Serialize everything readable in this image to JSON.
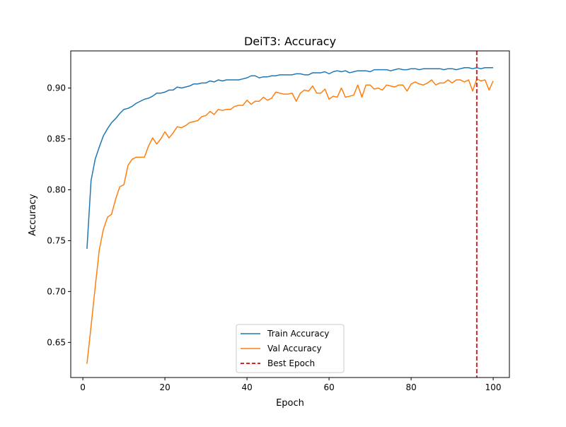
{
  "chart_data": {
    "type": "line",
    "title": "DeiT3: Accuracy",
    "xlabel": "Epoch",
    "ylabel": "Accuracy",
    "xlim": [
      -2.95,
      103.95
    ],
    "ylim": [
      0.6155,
      0.9365
    ],
    "xticks": [
      0,
      20,
      40,
      60,
      80,
      100
    ],
    "yticks": [
      0.65,
      0.7,
      0.75,
      0.8,
      0.85,
      0.9
    ],
    "ytick_labels": [
      "0.65",
      "0.70",
      "0.75",
      "0.80",
      "0.85",
      "0.90"
    ],
    "grid": false,
    "legend_position": "lower center",
    "x": [
      1,
      2,
      3,
      4,
      5,
      6,
      7,
      8,
      9,
      10,
      11,
      12,
      13,
      14,
      15,
      16,
      17,
      18,
      19,
      20,
      21,
      22,
      23,
      24,
      25,
      26,
      27,
      28,
      29,
      30,
      31,
      32,
      33,
      34,
      35,
      36,
      37,
      38,
      39,
      40,
      41,
      42,
      43,
      44,
      45,
      46,
      47,
      48,
      49,
      50,
      51,
      52,
      53,
      54,
      55,
      56,
      57,
      58,
      59,
      60,
      61,
      62,
      63,
      64,
      65,
      66,
      67,
      68,
      69,
      70,
      71,
      72,
      73,
      74,
      75,
      76,
      77,
      78,
      79,
      80,
      81,
      82,
      83,
      84,
      85,
      86,
      87,
      88,
      89,
      90,
      91,
      92,
      93,
      94,
      95,
      96,
      97,
      98,
      99,
      100
    ],
    "series": [
      {
        "name": "Train Accuracy",
        "color": "#1f77b4",
        "values": [
          0.742,
          0.809,
          0.83,
          0.842,
          0.853,
          0.86,
          0.866,
          0.87,
          0.875,
          0.879,
          0.88,
          0.882,
          0.885,
          0.887,
          0.889,
          0.89,
          0.892,
          0.895,
          0.895,
          0.896,
          0.898,
          0.898,
          0.901,
          0.9,
          0.901,
          0.902,
          0.904,
          0.904,
          0.905,
          0.905,
          0.907,
          0.906,
          0.908,
          0.907,
          0.908,
          0.908,
          0.908,
          0.908,
          0.909,
          0.91,
          0.912,
          0.912,
          0.91,
          0.911,
          0.911,
          0.912,
          0.912,
          0.913,
          0.913,
          0.913,
          0.913,
          0.914,
          0.914,
          0.913,
          0.913,
          0.915,
          0.915,
          0.915,
          0.916,
          0.914,
          0.916,
          0.917,
          0.916,
          0.917,
          0.915,
          0.916,
          0.917,
          0.917,
          0.917,
          0.916,
          0.918,
          0.918,
          0.918,
          0.918,
          0.917,
          0.918,
          0.919,
          0.918,
          0.918,
          0.919,
          0.919,
          0.918,
          0.919,
          0.919,
          0.919,
          0.919,
          0.919,
          0.918,
          0.919,
          0.919,
          0.918,
          0.919,
          0.92,
          0.92,
          0.919,
          0.92,
          0.919,
          0.92,
          0.92,
          0.92
        ]
      },
      {
        "name": "Val Accuracy",
        "color": "#ff7f0e",
        "values": [
          0.629,
          0.666,
          0.704,
          0.741,
          0.761,
          0.773,
          0.776,
          0.791,
          0.803,
          0.805,
          0.824,
          0.83,
          0.832,
          0.832,
          0.832,
          0.843,
          0.851,
          0.845,
          0.85,
          0.857,
          0.851,
          0.856,
          0.862,
          0.861,
          0.863,
          0.866,
          0.867,
          0.868,
          0.872,
          0.873,
          0.877,
          0.874,
          0.879,
          0.878,
          0.879,
          0.879,
          0.882,
          0.883,
          0.883,
          0.888,
          0.884,
          0.887,
          0.887,
          0.891,
          0.888,
          0.89,
          0.896,
          0.895,
          0.894,
          0.894,
          0.895,
          0.887,
          0.895,
          0.898,
          0.897,
          0.902,
          0.895,
          0.895,
          0.899,
          0.889,
          0.892,
          0.891,
          0.9,
          0.891,
          0.892,
          0.893,
          0.903,
          0.891,
          0.903,
          0.903,
          0.899,
          0.9,
          0.898,
          0.903,
          0.902,
          0.901,
          0.903,
          0.903,
          0.897,
          0.904,
          0.906,
          0.904,
          0.903,
          0.905,
          0.908,
          0.903,
          0.905,
          0.905,
          0.908,
          0.905,
          0.908,
          0.908,
          0.906,
          0.908,
          0.897,
          0.909,
          0.907,
          0.908,
          0.898,
          0.907
        ]
      }
    ],
    "vline": {
      "name": "Best Epoch",
      "x": 96,
      "color": "#d62728",
      "style": "dashed"
    }
  }
}
